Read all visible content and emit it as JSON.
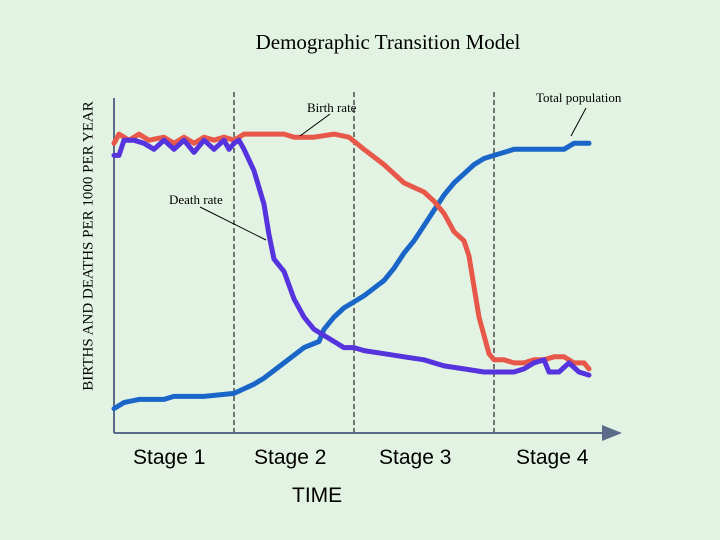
{
  "chart_data": {
    "type": "line",
    "title": "Demographic Transition Model",
    "ylabel": "BIRTHS AND DEATHS PER 1000 PER YEAR",
    "xlabel": "TIME",
    "x_categories": [
      "Stage 1",
      "Stage 2",
      "Stage 3",
      "Stage 4"
    ],
    "xlim": [
      0,
      100
    ],
    "ylim": [
      0,
      100
    ],
    "stage_boundaries": [
      24,
      48,
      76
    ],
    "series": [
      {
        "name": "Birth rate",
        "color": "#e8584a",
        "points": [
          [
            0,
            95
          ],
          [
            1,
            98
          ],
          [
            3,
            96
          ],
          [
            5,
            98
          ],
          [
            7,
            96
          ],
          [
            10,
            97
          ],
          [
            12,
            95
          ],
          [
            14,
            97
          ],
          [
            16,
            95
          ],
          [
            18,
            97
          ],
          [
            20,
            96
          ],
          [
            22,
            97
          ],
          [
            24,
            96
          ],
          [
            26,
            98
          ],
          [
            30,
            98
          ],
          [
            34,
            98
          ],
          [
            36,
            97
          ],
          [
            40,
            97
          ],
          [
            44,
            98
          ],
          [
            47,
            97
          ],
          [
            50,
            93
          ],
          [
            54,
            88
          ],
          [
            58,
            82
          ],
          [
            62,
            79
          ],
          [
            64,
            76
          ],
          [
            66,
            72
          ],
          [
            68,
            66
          ],
          [
            70,
            63
          ],
          [
            71,
            58
          ],
          [
            72,
            48
          ],
          [
            73,
            38
          ],
          [
            74,
            32
          ],
          [
            75,
            26
          ],
          [
            76,
            24
          ],
          [
            78,
            24
          ],
          [
            80,
            23
          ],
          [
            82,
            23
          ],
          [
            84,
            24
          ],
          [
            86,
            24
          ],
          [
            88,
            25
          ],
          [
            90,
            25
          ],
          [
            92,
            23
          ],
          [
            94,
            23
          ],
          [
            95,
            21
          ]
        ]
      },
      {
        "name": "Death rate",
        "color": "#5533dd",
        "points": [
          [
            0,
            91
          ],
          [
            1,
            91
          ],
          [
            2,
            96
          ],
          [
            4,
            96
          ],
          [
            6,
            95
          ],
          [
            8,
            93
          ],
          [
            10,
            96
          ],
          [
            12,
            93
          ],
          [
            14,
            96
          ],
          [
            16,
            92
          ],
          [
            18,
            96
          ],
          [
            20,
            93
          ],
          [
            22,
            96
          ],
          [
            23,
            93
          ],
          [
            24,
            95
          ],
          [
            25,
            96
          ],
          [
            26,
            93
          ],
          [
            28,
            86
          ],
          [
            30,
            75
          ],
          [
            31,
            65
          ],
          [
            32,
            57
          ],
          [
            34,
            53
          ],
          [
            36,
            44
          ],
          [
            38,
            38
          ],
          [
            40,
            34
          ],
          [
            42,
            32
          ],
          [
            44,
            30
          ],
          [
            46,
            28
          ],
          [
            48,
            28
          ],
          [
            50,
            27
          ],
          [
            54,
            26
          ],
          [
            58,
            25
          ],
          [
            62,
            24
          ],
          [
            66,
            22
          ],
          [
            70,
            21
          ],
          [
            74,
            20
          ],
          [
            78,
            20
          ],
          [
            80,
            20
          ],
          [
            82,
            21
          ],
          [
            84,
            23
          ],
          [
            86,
            24
          ],
          [
            87,
            20
          ],
          [
            89,
            20
          ],
          [
            91,
            23
          ],
          [
            93,
            20
          ],
          [
            95,
            19
          ]
        ]
      },
      {
        "name": "Total  population",
        "color": "#1a66c8",
        "points": [
          [
            0,
            8
          ],
          [
            2,
            10
          ],
          [
            5,
            11
          ],
          [
            10,
            11
          ],
          [
            12,
            12
          ],
          [
            18,
            12
          ],
          [
            24,
            13
          ],
          [
            28,
            16
          ],
          [
            30,
            18
          ],
          [
            34,
            23
          ],
          [
            38,
            28
          ],
          [
            41,
            30
          ],
          [
            42,
            34
          ],
          [
            44,
            38
          ],
          [
            46,
            41
          ],
          [
            48,
            43
          ],
          [
            50,
            45
          ],
          [
            54,
            50
          ],
          [
            56,
            54
          ],
          [
            58,
            59
          ],
          [
            60,
            63
          ],
          [
            62,
            68
          ],
          [
            64,
            73
          ],
          [
            66,
            78
          ],
          [
            68,
            82
          ],
          [
            70,
            85
          ],
          [
            72,
            88
          ],
          [
            74,
            90
          ],
          [
            76,
            91
          ],
          [
            78,
            92
          ],
          [
            80,
            93
          ],
          [
            84,
            93
          ],
          [
            90,
            93
          ],
          [
            92,
            95
          ],
          [
            95,
            95
          ]
        ]
      }
    ],
    "annotations": {
      "birth_rate": "Birth rate",
      "death_rate": "Death rate",
      "total_population": "Total  population"
    },
    "axis_color": "#5a6b8a",
    "grid": false,
    "legend": "none"
  }
}
